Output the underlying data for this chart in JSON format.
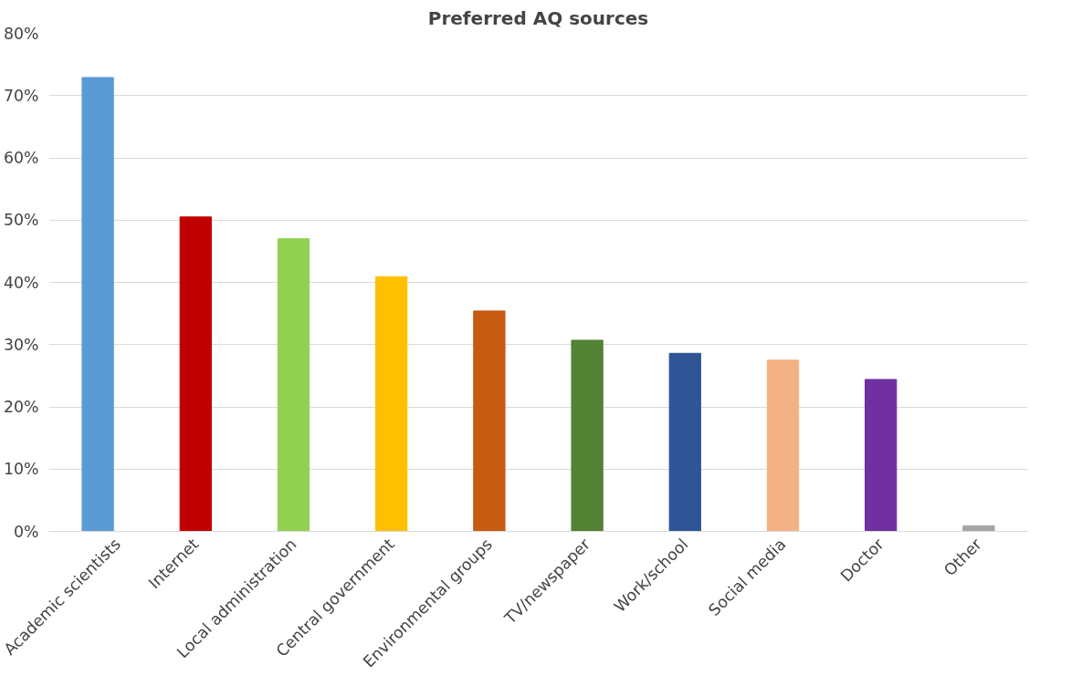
{
  "chart_data": {
    "type": "bar",
    "title": "Preferred AQ sources",
    "categories": [
      "Academic scientists",
      "Internet",
      "Local administration",
      "Central government",
      "Environmental groups",
      "TV/newspaper",
      "Work/school",
      "Social media",
      "Doctor",
      "Other"
    ],
    "values": [
      72.9,
      50.5,
      47.0,
      40.9,
      35.4,
      30.7,
      28.6,
      27.5,
      24.4,
      0.9
    ],
    "colors": [
      "#5b9bd5",
      "#c00000",
      "#92d050",
      "#ffc000",
      "#c55a11",
      "#548235",
      "#2f5597",
      "#f4b183",
      "#7030a0",
      "#a5a5a5"
    ],
    "ylim": [
      0,
      80
    ],
    "yticks": [
      {
        "value": 0,
        "label": "0%"
      },
      {
        "value": 10,
        "label": "10%"
      },
      {
        "value": 20,
        "label": "20%"
      },
      {
        "value": 30,
        "label": "30%"
      },
      {
        "value": 40,
        "label": "40%"
      },
      {
        "value": 50,
        "label": "50%"
      },
      {
        "value": 60,
        "label": "60%"
      },
      {
        "value": 70,
        "label": "70%"
      },
      {
        "value": 80,
        "label": "80%"
      }
    ],
    "grid": "y"
  }
}
